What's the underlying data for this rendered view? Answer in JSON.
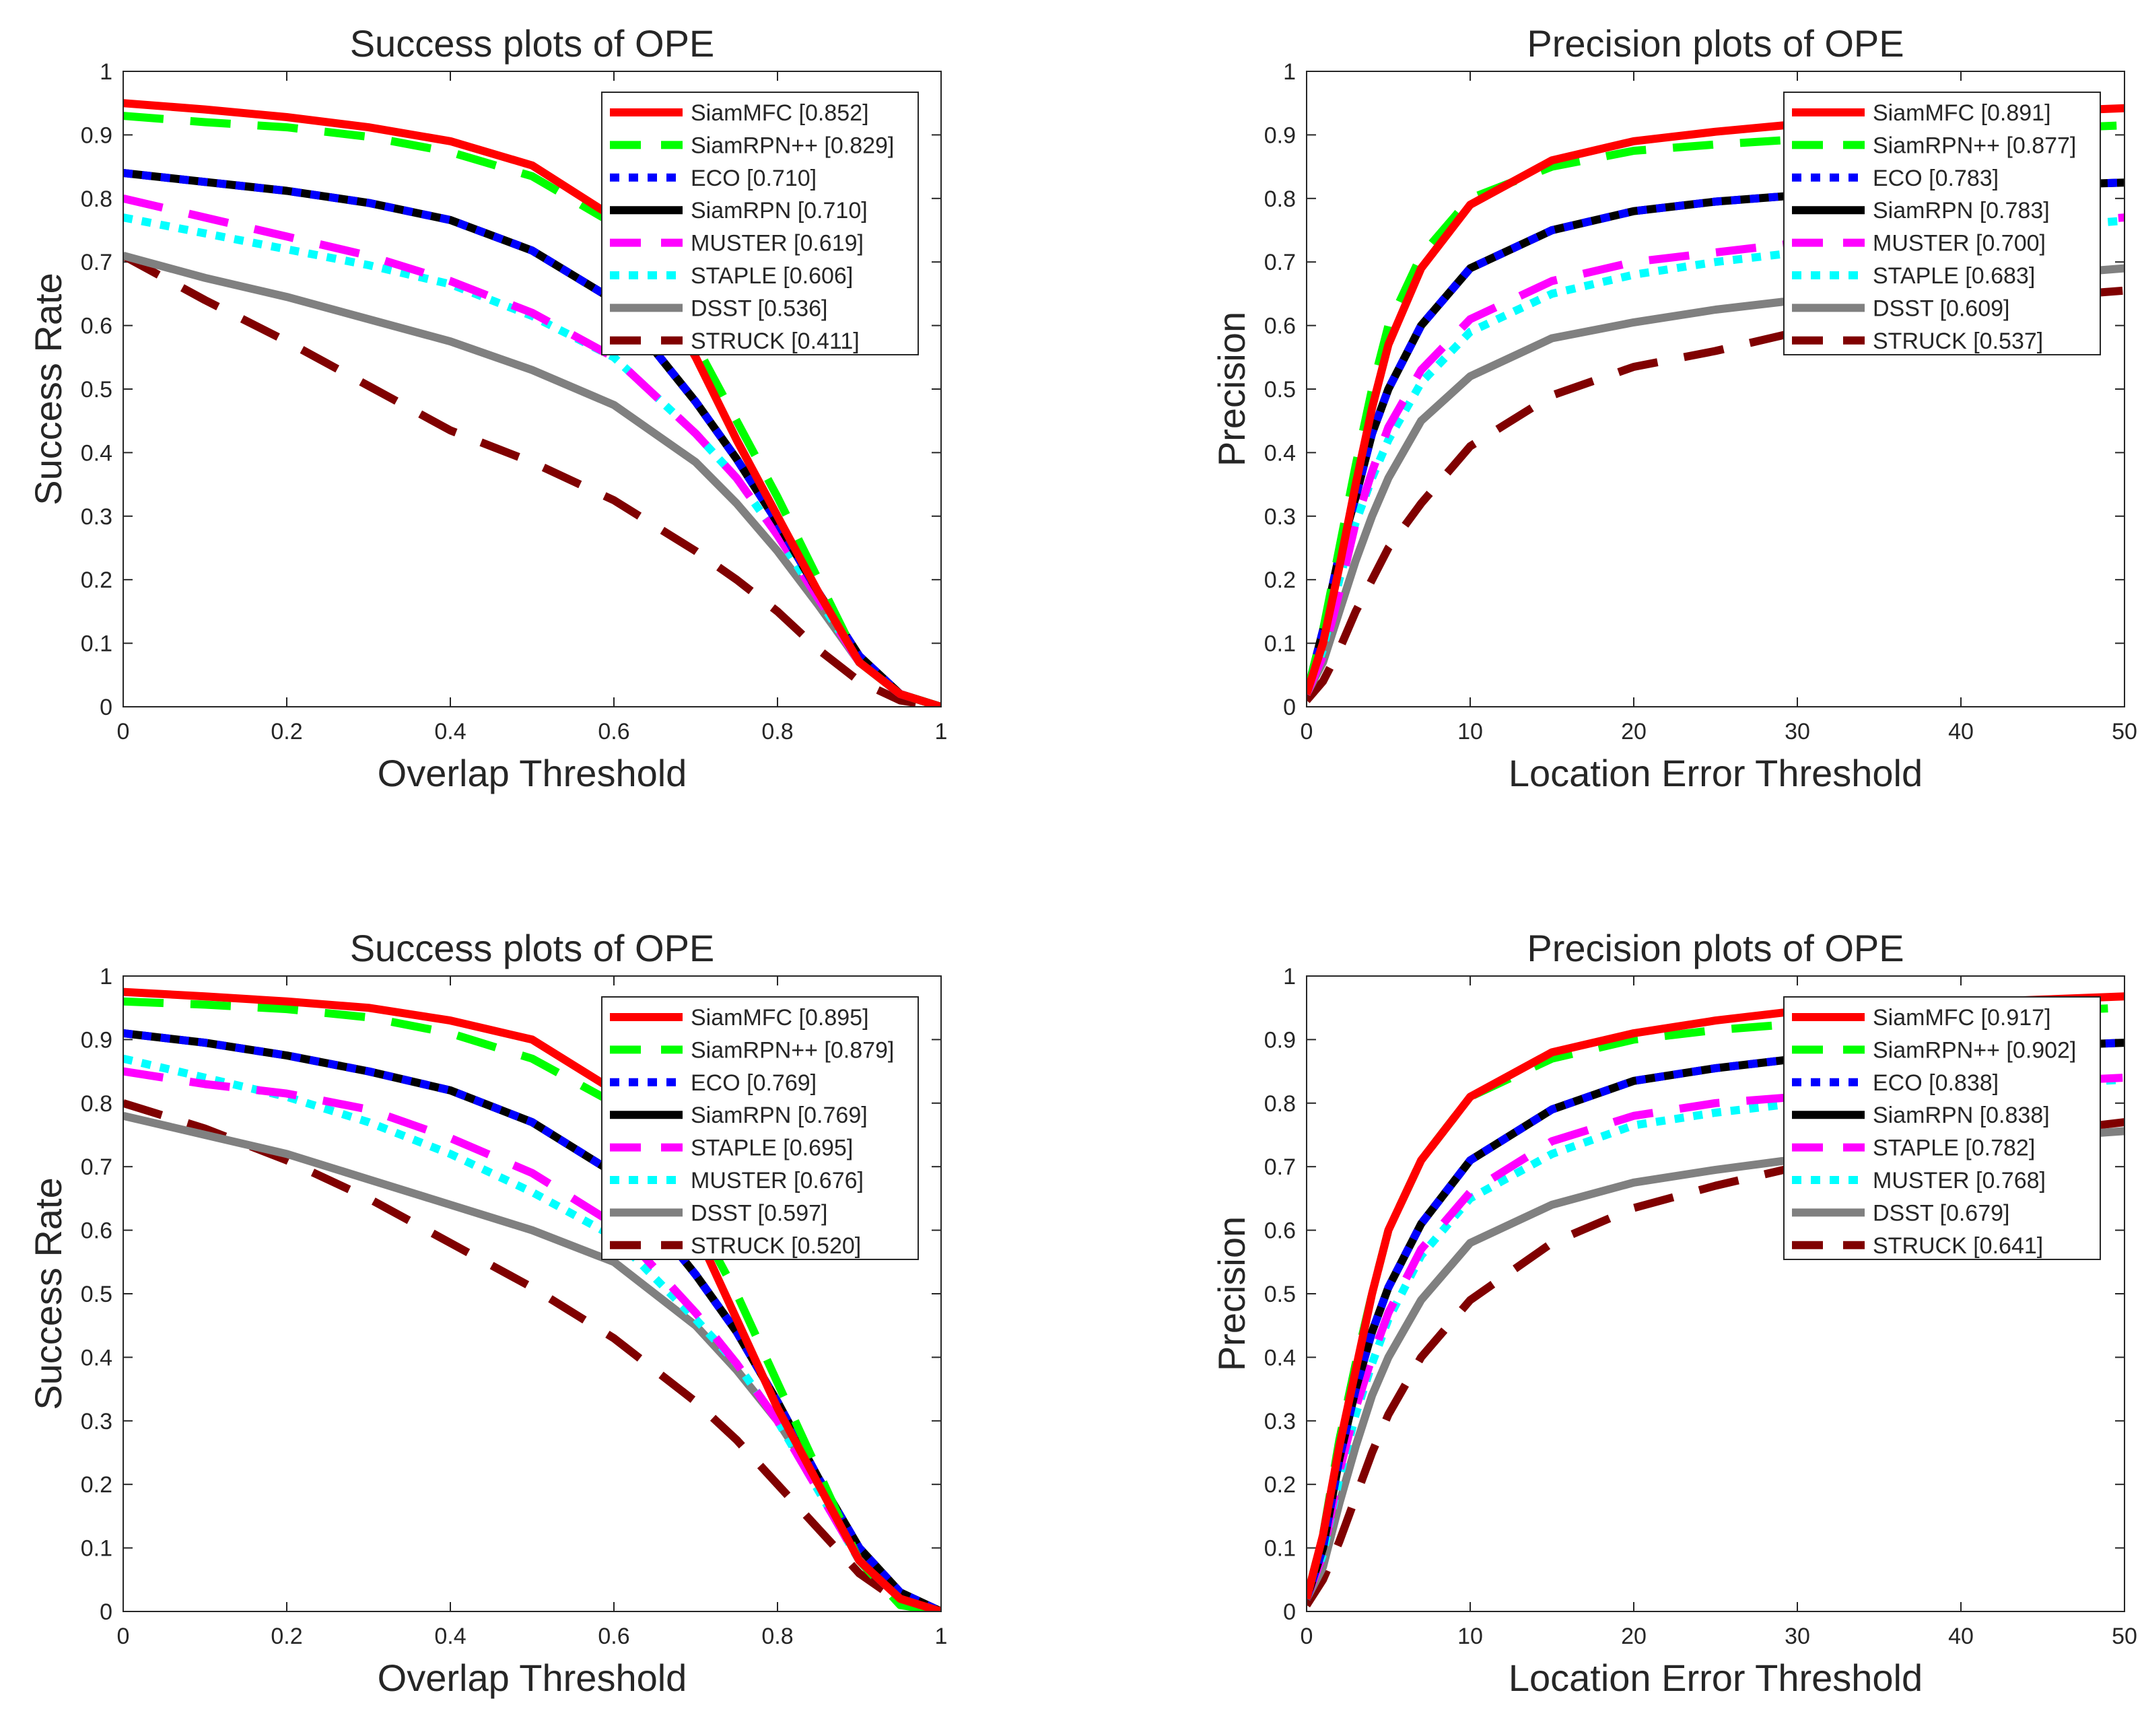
{
  "chart_data": [
    {
      "type": "line",
      "title": "Success plots of OPE",
      "xlabel": "Overlap Threshold",
      "ylabel": "Success Rate",
      "xlim": [
        0,
        1
      ],
      "ylim": [
        0,
        1
      ],
      "xticks": [
        "0",
        "0.2",
        "0.4",
        "0.6",
        "0.8",
        "1"
      ],
      "yticks": [
        "0",
        "0.1",
        "0.2",
        "0.3",
        "0.4",
        "0.5",
        "0.6",
        "0.7",
        "0.8",
        "0.9",
        "1"
      ],
      "grid": false,
      "legend_position": "top-right",
      "x": [
        0,
        0.1,
        0.2,
        0.3,
        0.4,
        0.5,
        0.6,
        0.7,
        0.75,
        0.8,
        0.85,
        0.9,
        0.95,
        1.0
      ],
      "series": [
        {
          "legend": "SiamMFC [0.852]",
          "color": "#ff0000",
          "dash": "solid",
          "values": [
            0.95,
            0.94,
            0.928,
            0.912,
            0.89,
            0.852,
            0.77,
            0.55,
            0.42,
            0.3,
            0.18,
            0.07,
            0.02,
            0.0
          ]
        },
        {
          "legend": "SiamRPN++ [0.829]",
          "color": "#00ff00",
          "dash": "dashed",
          "values": [
            0.93,
            0.92,
            0.912,
            0.897,
            0.873,
            0.835,
            0.76,
            0.57,
            0.45,
            0.33,
            0.2,
            0.07,
            0.02,
            0.0
          ]
        },
        {
          "legend": "ECO [0.710]",
          "color": "#0000ff",
          "dash": "dotted",
          "values": [
            0.84,
            0.826,
            0.812,
            0.793,
            0.766,
            0.718,
            0.64,
            0.48,
            0.39,
            0.29,
            0.18,
            0.08,
            0.02,
            0.0
          ]
        },
        {
          "legend": "SiamRPN [0.710]",
          "color": "#000000",
          "dash": "solid",
          "values": [
            0.84,
            0.826,
            0.812,
            0.793,
            0.766,
            0.718,
            0.64,
            0.48,
            0.39,
            0.29,
            0.18,
            0.08,
            0.02,
            0.0
          ]
        },
        {
          "legend": "MUSTER [0.619]",
          "color": "#ff00ff",
          "dash": "dashed",
          "values": [
            0.8,
            0.77,
            0.74,
            0.71,
            0.67,
            0.62,
            0.55,
            0.43,
            0.36,
            0.27,
            0.17,
            0.07,
            0.02,
            0.0
          ]
        },
        {
          "legend": "STAPLE [0.606]",
          "color": "#00ffff",
          "dash": "dotted",
          "values": [
            0.77,
            0.745,
            0.72,
            0.695,
            0.665,
            0.615,
            0.55,
            0.43,
            0.36,
            0.27,
            0.17,
            0.07,
            0.02,
            0.0
          ]
        },
        {
          "legend": "DSST [0.536]",
          "color": "#808080",
          "dash": "solid",
          "values": [
            0.71,
            0.675,
            0.645,
            0.61,
            0.575,
            0.53,
            0.475,
            0.385,
            0.32,
            0.245,
            0.16,
            0.07,
            0.02,
            0.0
          ]
        },
        {
          "legend": "STRUCK [0.411]",
          "color": "#800000",
          "dash": "dashed",
          "values": [
            0.71,
            0.64,
            0.575,
            0.505,
            0.435,
            0.385,
            0.325,
            0.245,
            0.2,
            0.15,
            0.09,
            0.04,
            0.01,
            0.0
          ]
        }
      ]
    },
    {
      "type": "line",
      "title": "Precision plots of OPE",
      "xlabel": "Location Error Threshold",
      "ylabel": "Precision",
      "xlim": [
        0,
        50
      ],
      "ylim": [
        0,
        1
      ],
      "xticks": [
        "0",
        "10",
        "20",
        "30",
        "40",
        "50"
      ],
      "yticks": [
        "0",
        "0.1",
        "0.2",
        "0.3",
        "0.4",
        "0.5",
        "0.6",
        "0.7",
        "0.8",
        "0.9",
        "1"
      ],
      "grid": false,
      "legend_position": "top-right",
      "x": [
        0,
        1,
        2,
        3,
        4,
        5,
        7,
        10,
        15,
        20,
        25,
        30,
        35,
        40,
        45,
        50
      ],
      "series": [
        {
          "legend": "SiamMFC [0.891]",
          "color": "#ff0000",
          "dash": "solid",
          "values": [
            0.02,
            0.1,
            0.22,
            0.35,
            0.47,
            0.57,
            0.69,
            0.79,
            0.86,
            0.89,
            0.905,
            0.917,
            0.925,
            0.932,
            0.937,
            0.942
          ]
        },
        {
          "legend": "SiamRPN++ [0.877]",
          "color": "#00ff00",
          "dash": "dashed",
          "values": [
            0.02,
            0.12,
            0.25,
            0.38,
            0.5,
            0.6,
            0.71,
            0.8,
            0.85,
            0.875,
            0.885,
            0.893,
            0.9,
            0.905,
            0.91,
            0.915
          ]
        },
        {
          "legend": "ECO [0.783]",
          "color": "#0000ff",
          "dash": "dotted",
          "values": [
            0.02,
            0.12,
            0.24,
            0.33,
            0.43,
            0.5,
            0.6,
            0.69,
            0.75,
            0.78,
            0.795,
            0.805,
            0.812,
            0.817,
            0.821,
            0.825
          ]
        },
        {
          "legend": "SiamRPN [0.783]",
          "color": "#000000",
          "dash": "solid",
          "values": [
            0.02,
            0.12,
            0.24,
            0.33,
            0.43,
            0.5,
            0.6,
            0.69,
            0.75,
            0.78,
            0.795,
            0.805,
            0.812,
            0.817,
            0.821,
            0.825
          ]
        },
        {
          "legend": "MUSTER [0.700]",
          "color": "#ff00ff",
          "dash": "dashed",
          "values": [
            0.02,
            0.08,
            0.18,
            0.29,
            0.37,
            0.44,
            0.53,
            0.61,
            0.67,
            0.7,
            0.715,
            0.73,
            0.74,
            0.75,
            0.76,
            0.77
          ]
        },
        {
          "legend": "STAPLE [0.683]",
          "color": "#00ffff",
          "dash": "dotted",
          "values": [
            0.02,
            0.09,
            0.2,
            0.29,
            0.36,
            0.42,
            0.51,
            0.59,
            0.65,
            0.68,
            0.7,
            0.715,
            0.73,
            0.745,
            0.755,
            0.765
          ]
        },
        {
          "legend": "DSST [0.609]",
          "color": "#808080",
          "dash": "solid",
          "values": [
            0.02,
            0.07,
            0.15,
            0.23,
            0.3,
            0.36,
            0.45,
            0.52,
            0.58,
            0.605,
            0.625,
            0.64,
            0.655,
            0.67,
            0.68,
            0.69
          ]
        },
        {
          "legend": "STRUCK [0.537]",
          "color": "#800000",
          "dash": "dashed",
          "values": [
            0.01,
            0.04,
            0.09,
            0.15,
            0.2,
            0.25,
            0.32,
            0.41,
            0.49,
            0.535,
            0.56,
            0.59,
            0.615,
            0.63,
            0.645,
            0.655
          ]
        }
      ]
    },
    {
      "type": "line",
      "title": "Success plots of OPE",
      "xlabel": "Overlap Threshold",
      "ylabel": "Success Rate",
      "xlim": [
        0,
        1
      ],
      "ylim": [
        0,
        1
      ],
      "xticks": [
        "0",
        "0.2",
        "0.4",
        "0.6",
        "0.8",
        "1"
      ],
      "yticks": [
        "0",
        "0.1",
        "0.2",
        "0.3",
        "0.4",
        "0.5",
        "0.6",
        "0.7",
        "0.8",
        "0.9",
        "1"
      ],
      "grid": false,
      "legend_position": "top-right",
      "x": [
        0,
        0.1,
        0.2,
        0.3,
        0.4,
        0.5,
        0.6,
        0.7,
        0.75,
        0.8,
        0.85,
        0.9,
        0.95,
        1.0
      ],
      "series": [
        {
          "legend": "SiamMFC [0.895]",
          "color": "#ff0000",
          "dash": "solid",
          "values": [
            0.975,
            0.968,
            0.96,
            0.95,
            0.93,
            0.9,
            0.82,
            0.6,
            0.46,
            0.32,
            0.2,
            0.08,
            0.02,
            0.0
          ]
        },
        {
          "legend": "SiamRPN++ [0.879]",
          "color": "#00ff00",
          "dash": "dashed",
          "values": [
            0.96,
            0.955,
            0.948,
            0.935,
            0.91,
            0.87,
            0.8,
            0.62,
            0.5,
            0.36,
            0.22,
            0.08,
            0.01,
            0.0
          ]
        },
        {
          "legend": "ECO [0.769]",
          "color": "#0000ff",
          "dash": "dotted",
          "values": [
            0.91,
            0.895,
            0.875,
            0.85,
            0.82,
            0.77,
            0.69,
            0.53,
            0.44,
            0.33,
            0.21,
            0.1,
            0.03,
            0.0
          ]
        },
        {
          "legend": "SiamRPN [0.769]",
          "color": "#000000",
          "dash": "solid",
          "values": [
            0.91,
            0.895,
            0.875,
            0.85,
            0.82,
            0.77,
            0.69,
            0.53,
            0.44,
            0.33,
            0.21,
            0.1,
            0.03,
            0.0
          ]
        },
        {
          "legend": "STAPLE [0.695]",
          "color": "#ff00ff",
          "dash": "dashed",
          "values": [
            0.85,
            0.83,
            0.815,
            0.79,
            0.745,
            0.69,
            0.61,
            0.47,
            0.39,
            0.3,
            0.19,
            0.08,
            0.02,
            0.0
          ]
        },
        {
          "legend": "MUSTER [0.676]",
          "color": "#00ffff",
          "dash": "dotted",
          "values": [
            0.87,
            0.84,
            0.81,
            0.77,
            0.72,
            0.66,
            0.59,
            0.46,
            0.39,
            0.3,
            0.19,
            0.08,
            0.02,
            0.0
          ]
        },
        {
          "legend": "DSST [0.597]",
          "color": "#808080",
          "dash": "solid",
          "values": [
            0.78,
            0.75,
            0.72,
            0.68,
            0.64,
            0.6,
            0.55,
            0.45,
            0.38,
            0.3,
            0.2,
            0.09,
            0.03,
            0.0
          ]
        },
        {
          "legend": "STRUCK [0.520]",
          "color": "#800000",
          "dash": "dashed",
          "values": [
            0.8,
            0.76,
            0.71,
            0.65,
            0.58,
            0.51,
            0.43,
            0.33,
            0.27,
            0.2,
            0.13,
            0.06,
            0.015,
            0.0
          ]
        }
      ]
    },
    {
      "type": "line",
      "title": "Precision plots of OPE",
      "xlabel": "Location Error Threshold",
      "ylabel": "Precision",
      "xlim": [
        0,
        50
      ],
      "ylim": [
        0,
        1
      ],
      "xticks": [
        "0",
        "10",
        "20",
        "30",
        "40",
        "50"
      ],
      "yticks": [
        "0",
        "0.1",
        "0.2",
        "0.3",
        "0.4",
        "0.5",
        "0.6",
        "0.7",
        "0.8",
        "0.9",
        "1"
      ],
      "grid": false,
      "legend_position": "top-right",
      "x": [
        0,
        1,
        2,
        3,
        4,
        5,
        7,
        10,
        15,
        20,
        25,
        30,
        35,
        40,
        45,
        50
      ],
      "series": [
        {
          "legend": "SiamMFC [0.917]",
          "color": "#ff0000",
          "dash": "solid",
          "values": [
            0.02,
            0.12,
            0.26,
            0.38,
            0.5,
            0.6,
            0.71,
            0.81,
            0.88,
            0.91,
            0.93,
            0.945,
            0.952,
            0.958,
            0.963,
            0.968
          ]
        },
        {
          "legend": "SiamRPN++ [0.902]",
          "color": "#00ff00",
          "dash": "dashed",
          "values": [
            0.02,
            0.12,
            0.27,
            0.39,
            0.5,
            0.6,
            0.71,
            0.81,
            0.87,
            0.9,
            0.915,
            0.925,
            0.933,
            0.94,
            0.945,
            0.95
          ]
        },
        {
          "legend": "ECO [0.838]",
          "color": "#0000ff",
          "dash": "dotted",
          "values": [
            0.02,
            0.1,
            0.24,
            0.35,
            0.44,
            0.51,
            0.61,
            0.71,
            0.79,
            0.835,
            0.855,
            0.87,
            0.878,
            0.884,
            0.89,
            0.895
          ]
        },
        {
          "legend": "SiamRPN [0.838]",
          "color": "#000000",
          "dash": "solid",
          "values": [
            0.02,
            0.1,
            0.24,
            0.35,
            0.44,
            0.51,
            0.61,
            0.71,
            0.79,
            0.835,
            0.855,
            0.87,
            0.878,
            0.884,
            0.89,
            0.895
          ]
        },
        {
          "legend": "STAPLE [0.782]",
          "color": "#ff00ff",
          "dash": "dashed",
          "values": [
            0.02,
            0.09,
            0.22,
            0.32,
            0.4,
            0.47,
            0.57,
            0.66,
            0.74,
            0.78,
            0.8,
            0.81,
            0.82,
            0.828,
            0.834,
            0.84
          ]
        },
        {
          "legend": "MUSTER [0.768]",
          "color": "#00ffff",
          "dash": "dotted",
          "values": [
            0.02,
            0.09,
            0.21,
            0.31,
            0.39,
            0.46,
            0.56,
            0.65,
            0.72,
            0.765,
            0.785,
            0.8,
            0.812,
            0.822,
            0.83,
            0.837
          ]
        },
        {
          "legend": "DSST [0.679]",
          "color": "#808080",
          "dash": "solid",
          "values": [
            0.02,
            0.07,
            0.17,
            0.26,
            0.34,
            0.4,
            0.49,
            0.58,
            0.64,
            0.675,
            0.695,
            0.712,
            0.725,
            0.737,
            0.747,
            0.756
          ]
        },
        {
          "legend": "STRUCK [0.641]",
          "color": "#800000",
          "dash": "dashed",
          "values": [
            0.01,
            0.05,
            0.11,
            0.18,
            0.25,
            0.31,
            0.4,
            0.49,
            0.58,
            0.635,
            0.67,
            0.7,
            0.72,
            0.74,
            0.755,
            0.77
          ]
        }
      ]
    }
  ]
}
